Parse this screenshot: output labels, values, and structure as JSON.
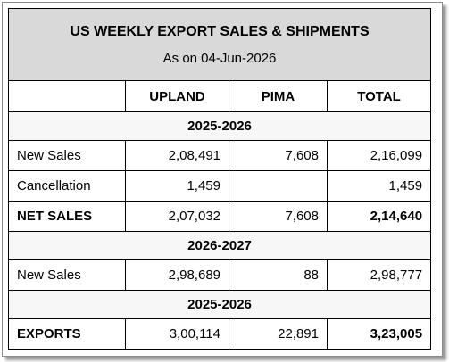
{
  "header": {
    "title": "US WEEKLY EXPORT SALES & SHIPMENTS",
    "subtitle": "As on 04-Jun-2026"
  },
  "table": {
    "columns": [
      "UPLAND",
      "PIMA",
      "TOTAL"
    ],
    "sections": [
      {
        "label": "2025-2026",
        "rows": [
          {
            "label": "New Sales",
            "values": [
              "2,08,491",
              "7,608",
              "2,16,099"
            ]
          },
          {
            "label": "Cancellation",
            "values": [
              "1,459",
              null,
              "1,459"
            ]
          },
          {
            "label": "NET SALES",
            "values": [
              "2,07,032",
              "7,608",
              "2,14,640"
            ]
          }
        ]
      },
      {
        "label": "2026-2027",
        "rows": [
          {
            "label": "New Sales",
            "values": [
              "2,98,689",
              "88",
              "2,98,777"
            ]
          }
        ]
      },
      {
        "label": "2025-2026",
        "rows": [
          {
            "label": "EXPORTS",
            "values": [
              "3,00,114",
              "22,891",
              "3,23,005"
            ]
          }
        ]
      }
    ]
  }
}
